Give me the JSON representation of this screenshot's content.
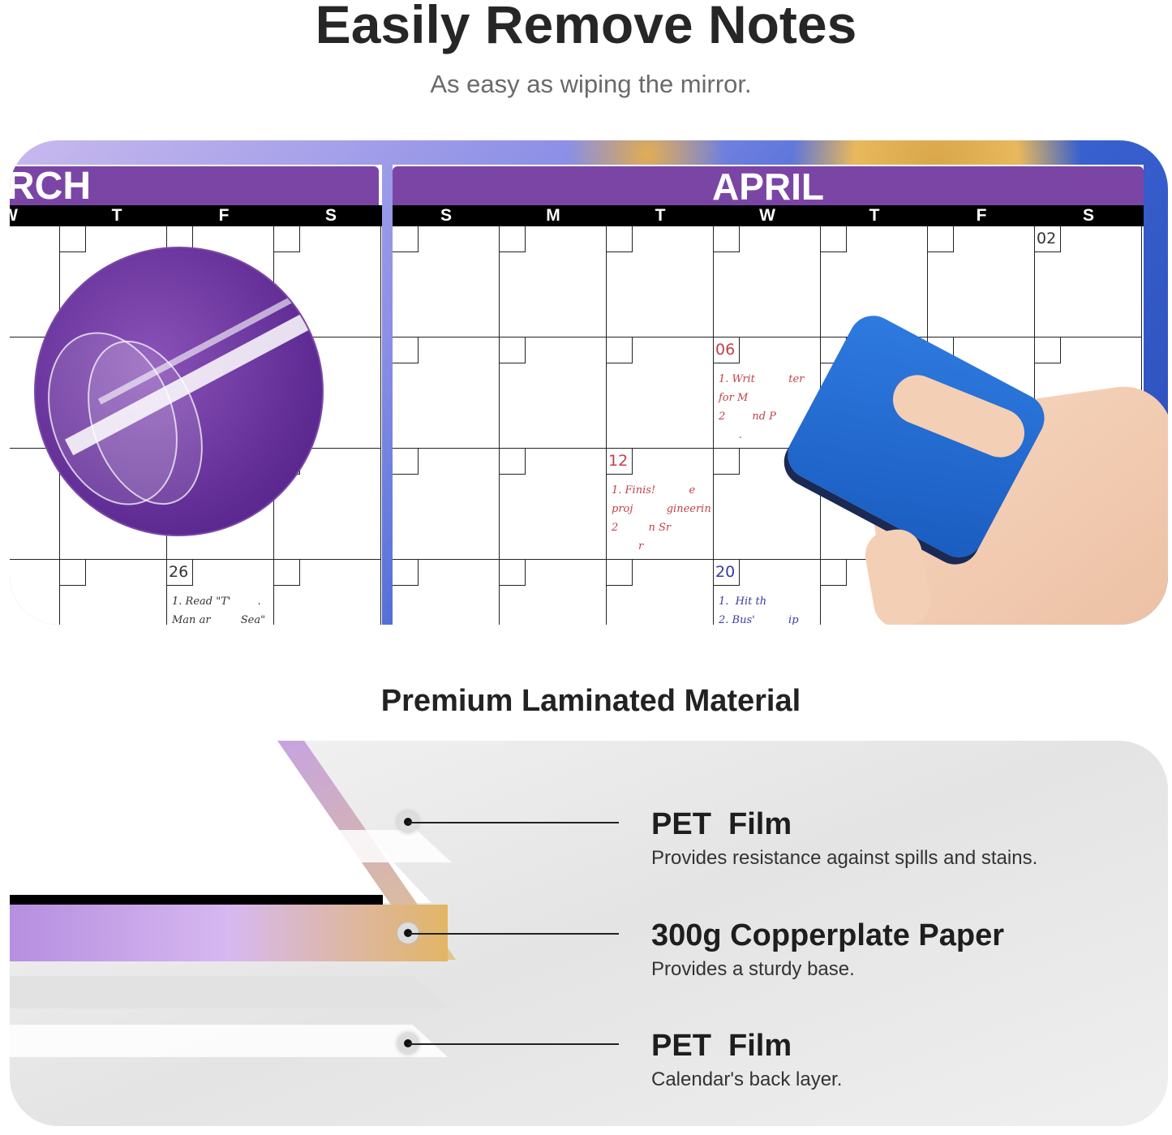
{
  "header": {
    "title": "Easily Remove Notes",
    "subtitle": "As easy as wiping the mirror."
  },
  "calendar": {
    "march": {
      "name": "RCH",
      "weekdays": [
        "W",
        "T",
        "F",
        "S"
      ],
      "notes": {
        "date": "26",
        "lines": "1. Read \"T'        .\nMan ar         Sea\""
      }
    },
    "april": {
      "name": "APRIL",
      "weekdays": [
        "S",
        "M",
        "T",
        "W",
        "T",
        "F",
        "S"
      ],
      "cells": [
        {
          "date": "02",
          "color": "#333"
        },
        {
          "date": "06",
          "color": "#c0404a",
          "note": "1. Writ          ter\nfor M\n2        nd P\n      ."
        },
        {
          "date": "12",
          "color": "#c0404a",
          "note": "1. Finis!          e\nproj          gineerin\n2         n Sr\n        r"
        },
        {
          "date": "20",
          "color": "#3a3aa0",
          "note": "1.  Hit th\n2. Bus'          ip"
        }
      ]
    }
  },
  "section2": {
    "title": "Premium Laminated Material"
  },
  "layers": [
    {
      "title": "PET  Film",
      "desc": "Provides resistance against spills and stains."
    },
    {
      "title": "300g Copperplate Paper",
      "desc": "Provides a sturdy base."
    },
    {
      "title": "PET  Film",
      "desc": "Calendar's back layer."
    }
  ],
  "colors": {
    "purple": "#7b45a6",
    "red_ink": "#c0404a",
    "blue_ink": "#3a3aa0",
    "sponge": "#2f7be0"
  }
}
